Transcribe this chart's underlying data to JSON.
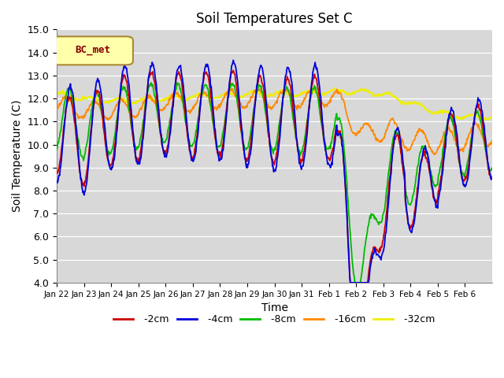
{
  "title": "Soil Temperatures Set C",
  "xlabel": "Time",
  "ylabel": "Soil Temperature (C)",
  "ylim": [
    4.0,
    15.0
  ],
  "yticks": [
    4.0,
    5.0,
    6.0,
    7.0,
    8.0,
    9.0,
    10.0,
    11.0,
    12.0,
    13.0,
    14.0,
    15.0
  ],
  "legend_label": "BC_met",
  "colors": {
    "-2cm": "#cc0000",
    "-4cm": "#0000dd",
    "-8cm": "#00bb00",
    "-16cm": "#ff8800",
    "-32cm": "#eeee00"
  },
  "x_tick_labels": [
    "Jan 22",
    "Jan 23",
    "Jan 24",
    "Jan 25",
    "Jan 26",
    "Jan 27",
    "Jan 28",
    "Jan 29",
    "Jan 30",
    "Jan 31",
    "Feb 1",
    "Feb 2",
    "Feb 3",
    "Feb 4",
    "Feb 5",
    "Feb 6"
  ],
  "background_color": "#d8d8d8",
  "plot_bg_color": "#d8d8d8",
  "grid_color": "#ffffff"
}
